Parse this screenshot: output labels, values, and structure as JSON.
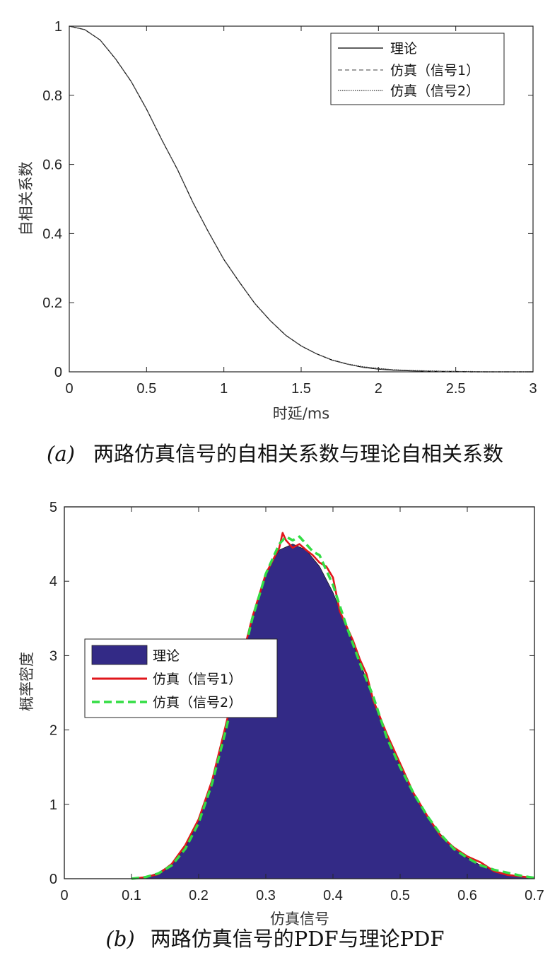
{
  "chart_data": [
    {
      "type": "line",
      "xlabel": "时延/ms",
      "ylabel": "自相关系数",
      "xlim": [
        0,
        3
      ],
      "ylim": [
        0,
        1
      ],
      "xticks": [
        "0",
        "0.5",
        "1",
        "1.5",
        "2",
        "2.5",
        "3"
      ],
      "yticks": [
        "0",
        "0.2",
        "0.4",
        "0.6",
        "0.8",
        "1"
      ],
      "grid": false,
      "legend_position": "top-right",
      "caption_tag": "(a)",
      "caption_text": "两路仿真信号的自相关系数与理论自相关系数",
      "series": [
        {
          "name": "理论",
          "style": "solid",
          "color": "#000000",
          "x": [
            0,
            0.1,
            0.2,
            0.3,
            0.4,
            0.5,
            0.6,
            0.7,
            0.8,
            0.9,
            1.0,
            1.1,
            1.2,
            1.3,
            1.4,
            1.5,
            1.6,
            1.7,
            1.8,
            1.9,
            2.0,
            2.1,
            2.2,
            2.3,
            2.4,
            2.5,
            2.6,
            2.7,
            2.8,
            2.9,
            3.0
          ],
          "y": [
            1.0,
            0.99,
            0.96,
            0.905,
            0.84,
            0.76,
            0.67,
            0.585,
            0.49,
            0.405,
            0.325,
            0.26,
            0.198,
            0.148,
            0.106,
            0.075,
            0.052,
            0.034,
            0.022,
            0.013,
            0.008,
            0.005,
            0.003,
            0.002,
            0.001,
            0.001,
            0.0,
            0.0,
            0.0,
            0.0,
            0.0
          ]
        },
        {
          "name": "仿真（信号1）",
          "style": "dashed",
          "color": "#666666",
          "x": [
            0,
            0.1,
            0.2,
            0.3,
            0.4,
            0.5,
            0.6,
            0.7,
            0.8,
            0.9,
            1.0,
            1.1,
            1.2,
            1.3,
            1.4,
            1.5,
            1.6,
            1.7,
            1.8,
            1.9,
            2.0,
            2.1,
            2.2,
            2.3,
            2.4,
            2.5,
            2.6,
            2.7,
            2.8,
            2.9,
            3.0
          ],
          "y": [
            1.0,
            0.99,
            0.96,
            0.905,
            0.84,
            0.76,
            0.67,
            0.585,
            0.49,
            0.405,
            0.325,
            0.26,
            0.198,
            0.148,
            0.106,
            0.075,
            0.052,
            0.034,
            0.022,
            0.014,
            0.009,
            0.006,
            0.004,
            0.002,
            0.001,
            0.001,
            0.0,
            0.0,
            0.0,
            0.0,
            0.0
          ]
        },
        {
          "name": "仿真（信号2）",
          "style": "dotted",
          "color": "#333333",
          "x": [
            0,
            0.1,
            0.2,
            0.3,
            0.4,
            0.5,
            0.6,
            0.7,
            0.8,
            0.9,
            1.0,
            1.1,
            1.2,
            1.3,
            1.4,
            1.5,
            1.6,
            1.7,
            1.8,
            1.9,
            2.0,
            2.1,
            2.2,
            2.3,
            2.4,
            2.5,
            2.6,
            2.7,
            2.8,
            2.9,
            3.0
          ],
          "y": [
            1.0,
            0.99,
            0.96,
            0.905,
            0.84,
            0.76,
            0.67,
            0.585,
            0.49,
            0.405,
            0.325,
            0.26,
            0.198,
            0.148,
            0.106,
            0.075,
            0.052,
            0.035,
            0.023,
            0.015,
            0.01,
            0.006,
            0.004,
            0.003,
            0.002,
            0.001,
            0.001,
            0.0,
            0.0,
            0.0,
            0.0
          ]
        }
      ]
    },
    {
      "type": "area",
      "xlabel": "仿真信号",
      "ylabel": "概率密度",
      "xlim": [
        0,
        0.7
      ],
      "ylim": [
        0,
        5
      ],
      "xticks": [
        "0",
        "0.1",
        "0.2",
        "0.3",
        "0.4",
        "0.5",
        "0.6",
        "0.7"
      ],
      "yticks": [
        "0",
        "1",
        "2",
        "3",
        "4",
        "5"
      ],
      "grid": false,
      "legend_position": "middle-left",
      "caption_tag": "(b)",
      "caption_text": "两路仿真信号的PDF与理论PDF",
      "series": [
        {
          "name": "理论",
          "style": "filled",
          "color": "#332a86",
          "x": [
            0,
            0.1,
            0.12,
            0.14,
            0.16,
            0.18,
            0.2,
            0.22,
            0.24,
            0.26,
            0.28,
            0.3,
            0.32,
            0.34,
            0.36,
            0.38,
            0.4,
            0.42,
            0.44,
            0.46,
            0.48,
            0.5,
            0.52,
            0.54,
            0.56,
            0.58,
            0.6,
            0.62,
            0.64,
            0.66,
            0.68,
            0.7
          ],
          "y": [
            0,
            0,
            0.02,
            0.08,
            0.2,
            0.42,
            0.78,
            1.3,
            2.0,
            2.78,
            3.5,
            4.1,
            4.42,
            4.5,
            4.42,
            4.2,
            3.85,
            3.4,
            2.92,
            2.42,
            1.95,
            1.52,
            1.15,
            0.84,
            0.6,
            0.42,
            0.28,
            0.18,
            0.11,
            0.06,
            0.03,
            0.01
          ]
        },
        {
          "name": "仿真（信号1）",
          "style": "solid",
          "color": "#e0161b",
          "x": [
            0.1,
            0.12,
            0.14,
            0.16,
            0.18,
            0.2,
            0.22,
            0.24,
            0.26,
            0.28,
            0.3,
            0.32,
            0.325,
            0.33,
            0.34,
            0.35,
            0.36,
            0.37,
            0.38,
            0.39,
            0.4,
            0.41,
            0.42,
            0.43,
            0.44,
            0.45,
            0.46,
            0.48,
            0.5,
            0.52,
            0.54,
            0.56,
            0.58,
            0.6,
            0.62,
            0.64,
            0.66,
            0.68,
            0.7
          ],
          "y": [
            0,
            0.02,
            0.06,
            0.2,
            0.45,
            0.8,
            1.32,
            2.05,
            2.8,
            3.52,
            4.1,
            4.45,
            4.65,
            4.55,
            4.45,
            4.5,
            4.42,
            4.35,
            4.25,
            4.2,
            4.05,
            3.6,
            3.4,
            3.2,
            2.95,
            2.75,
            2.4,
            1.95,
            1.55,
            1.15,
            0.85,
            0.58,
            0.42,
            0.3,
            0.22,
            0.1,
            0.05,
            0.03,
            0.01
          ]
        },
        {
          "name": "仿真（信号2）",
          "style": "dashed",
          "color": "#33dd44",
          "x": [
            0.1,
            0.12,
            0.14,
            0.16,
            0.18,
            0.2,
            0.22,
            0.24,
            0.26,
            0.28,
            0.3,
            0.32,
            0.33,
            0.34,
            0.35,
            0.36,
            0.37,
            0.38,
            0.4,
            0.42,
            0.44,
            0.46,
            0.48,
            0.5,
            0.52,
            0.54,
            0.56,
            0.58,
            0.6,
            0.62,
            0.64,
            0.66,
            0.68,
            0.7
          ],
          "y": [
            0,
            0.02,
            0.07,
            0.18,
            0.4,
            0.75,
            1.28,
            1.98,
            2.75,
            3.5,
            4.1,
            4.5,
            4.6,
            4.55,
            4.6,
            4.5,
            4.4,
            4.35,
            3.95,
            3.4,
            2.9,
            2.45,
            1.9,
            1.5,
            1.15,
            0.85,
            0.6,
            0.4,
            0.28,
            0.18,
            0.12,
            0.08,
            0.04,
            0.01
          ]
        }
      ]
    }
  ]
}
